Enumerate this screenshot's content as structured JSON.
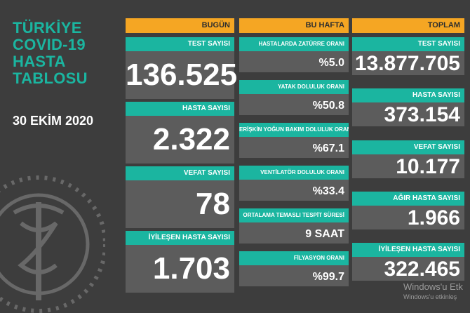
{
  "title": "TÜRKİYE\nCOVID-19\nHASTA\nTABLOSU",
  "date": "30 EKİM 2020",
  "columns": {
    "today": {
      "header": "BUGÜN",
      "items": [
        {
          "label": "TEST SAYISI",
          "value": "136.525"
        },
        {
          "label": "HASTA SAYISI",
          "value": "2.322"
        },
        {
          "label": "VEFAT SAYISI",
          "value": "78"
        },
        {
          "label": "İYİLEŞEN HASTA SAYISI",
          "value": "1.703"
        }
      ]
    },
    "week": {
      "header": "BU HAFTA",
      "items": [
        {
          "label": "HASTALARDA ZATÜRRE ORANI",
          "value": "%5.0"
        },
        {
          "label": "YATAK DOLULUK ORANI",
          "value": "%50.8"
        },
        {
          "label": "ERİŞKİN YOĞUN BAKIM DOLULUK ORANI",
          "value": "%67.1"
        },
        {
          "label": "VENTİLATÖR DOLULUK ORANI",
          "value": "%33.4"
        },
        {
          "label": "ORTALAMA TEMASLI TESPİT SÜRESİ",
          "value": "9 SAAT"
        },
        {
          "label": "FİLYASYON ORANI",
          "value": "%99.7"
        }
      ]
    },
    "total": {
      "header": "TOPLAM",
      "items": [
        {
          "label": "TEST SAYISI",
          "value": "13.877.705"
        },
        {
          "label": "HASTA SAYISI",
          "value": "373.154"
        },
        {
          "label": "VEFAT SAYISI",
          "value": "10.177"
        },
        {
          "label": "AĞIR HASTA SAYISI",
          "value": "1.966"
        },
        {
          "label": "İYİLEŞEN HASTA SAYISI",
          "value": "322.465"
        }
      ]
    }
  },
  "watermark": {
    "line1": "Windows'u Etk",
    "line2": "Windows'u etkinleş"
  },
  "colors": {
    "accent": "#1bb5a0",
    "header": "#f5a623",
    "background": "#3d3d3d",
    "card": "#5c5c5c"
  }
}
